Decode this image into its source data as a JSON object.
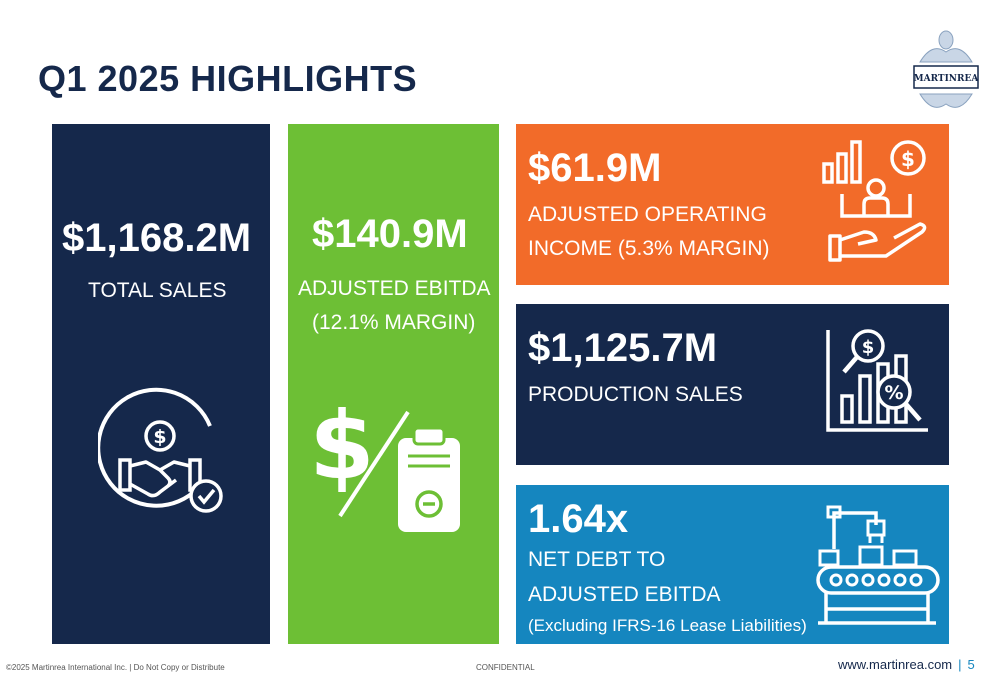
{
  "slide": {
    "title": "Q1 2025 HIGHLIGHTS",
    "logo_text": "MARTINREA"
  },
  "cards": {
    "total_sales": {
      "value": "$1,168.2M",
      "label": "TOTAL SALES",
      "icon": "handshake-dollar-icon",
      "color": "#15284b"
    },
    "adjusted_ebitda": {
      "value": "$140.9M",
      "label_line1": "ADJUSTED EBITDA",
      "label_line2": "(12.1% MARGIN)",
      "icon": "dollar-clipboard-icon",
      "color": "#6dbf35"
    },
    "adjusted_operating_income": {
      "value": "$61.9M",
      "label_line1": "ADJUSTED OPERATING",
      "label_line2": "INCOME (5.3% MARGIN)",
      "icon": "hand-growth-icon",
      "color": "#f26b29"
    },
    "production_sales": {
      "value": "$1,125.7M",
      "label": "PRODUCTION SALES",
      "icon": "chart-magnifier-icon",
      "color": "#15284b"
    },
    "net_debt": {
      "value": "1.64x",
      "label_line1": "NET DEBT TO",
      "label_line2": "ADJUSTED EBITDA",
      "note": "(Excluding IFRS-16 Lease Liabilities)",
      "icon": "conveyor-robot-icon",
      "color": "#1586bf"
    }
  },
  "footer": {
    "copyright": "©2025 Martinrea International Inc. | Do Not Copy or Distribute",
    "confidential": "CONFIDENTIAL",
    "website": "www.martinrea.com",
    "separator": "|",
    "page_number": "5"
  }
}
